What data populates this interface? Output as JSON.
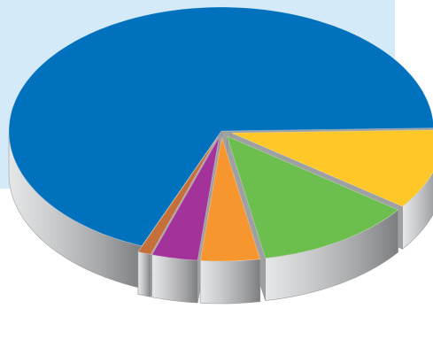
{
  "chart_data": {
    "type": "pie",
    "style": "3d-exploded",
    "legend": "none",
    "slices": [
      {
        "value": 68.5,
        "color": "#0071bc",
        "exploded": false
      },
      {
        "value": 10.5,
        "color": "#ffc828",
        "exploded": true
      },
      {
        "value": 12.0,
        "color": "#6cbf4f",
        "exploded": true
      },
      {
        "value": 4.5,
        "color": "#f7962e",
        "exploded": true
      },
      {
        "value": 3.5,
        "color": "#a3339b",
        "exploded": true
      },
      {
        "value": 1.0,
        "color": "#c5703a",
        "exploded": true
      }
    ]
  },
  "colors": {
    "background_panel": "#d4eaf8",
    "side_wall": "#b8b9bb"
  }
}
